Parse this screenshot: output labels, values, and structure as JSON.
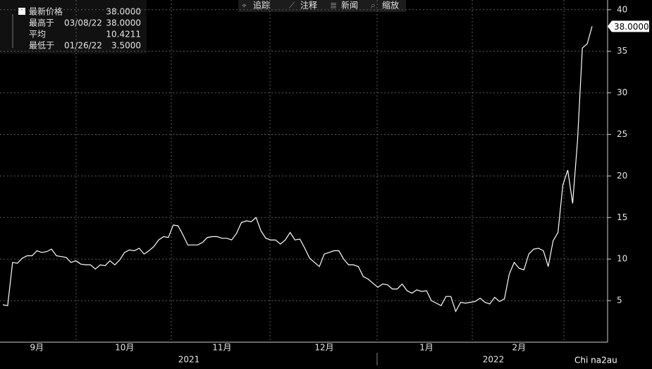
{
  "chart_data": {
    "type": "line",
    "toolbar": [
      "追踪",
      "注释",
      "新闻",
      "缩放"
    ],
    "stats": [
      {
        "name": "最新价格",
        "value": "38.0000"
      },
      {
        "name": "最高于",
        "date": "03/08/22",
        "value": "38.0000"
      },
      {
        "name": "平均",
        "value": "10.4211"
      },
      {
        "name": "最低于",
        "date": "01/26/22",
        "value": "3.5000"
      }
    ],
    "last_label": "38.0000",
    "years": [
      "2021",
      "2022"
    ],
    "watermark": "Chi na2au",
    "categories": [
      null,
      null,
      null,
      null,
      null,
      null,
      null,
      "9月",
      null,
      null,
      null,
      null,
      null,
      null,
      null,
      null,
      null,
      null,
      null,
      null,
      null,
      null,
      null,
      null,
      null,
      "10月",
      null,
      null,
      null,
      null,
      null,
      null,
      null,
      null,
      null,
      null,
      null,
      null,
      null,
      null,
      null,
      null,
      null,
      null,
      null,
      "11月",
      null,
      null,
      null,
      null,
      null,
      null,
      null,
      null,
      null,
      null,
      null,
      null,
      null,
      null,
      null,
      null,
      null,
      null,
      null,
      null,
      "12月",
      null,
      null,
      null,
      null,
      null,
      null,
      null,
      null,
      null,
      null,
      null,
      null,
      null,
      null,
      null,
      null,
      null,
      null,
      null,
      null,
      "1月",
      null,
      null,
      null,
      null,
      null,
      null,
      null,
      null,
      null,
      null,
      null,
      null,
      null,
      null,
      null,
      null,
      null,
      null,
      "2月",
      null,
      null,
      null,
      null,
      null,
      null,
      null,
      null,
      null,
      null,
      null,
      null,
      null,
      null,
      null
    ],
    "values": [
      4.5,
      4.4,
      9.6,
      9.5,
      10.1,
      10.4,
      10.4,
      11.0,
      10.8,
      10.9,
      11.2,
      10.4,
      10.3,
      10.2,
      9.6,
      9.8,
      9.4,
      9.3,
      9.3,
      8.8,
      9.3,
      9.2,
      9.8,
      9.3,
      9.9,
      10.8,
      11.1,
      11.0,
      11.3,
      10.6,
      11.0,
      11.5,
      12.3,
      12.7,
      12.6,
      14.1,
      14.0,
      12.9,
      11.7,
      11.7,
      11.7,
      12.0,
      12.6,
      12.7,
      12.7,
      12.5,
      12.5,
      12.3,
      13.1,
      14.4,
      14.6,
      14.5,
      15.0,
      13.4,
      12.5,
      12.3,
      12.3,
      11.8,
      12.3,
      13.2,
      12.3,
      12.4,
      11.3,
      10.1,
      9.6,
      9.1,
      10.6,
      10.8,
      11.0,
      11.0,
      10.0,
      9.3,
      9.3,
      9.1,
      7.9,
      7.6,
      7.1,
      6.6,
      7.0,
      6.9,
      6.4,
      6.4,
      7.0,
      6.2,
      5.9,
      6.3,
      6.1,
      6.2,
      5.0,
      4.7,
      4.4,
      5.5,
      5.5,
      3.7,
      4.8,
      4.7,
      4.8,
      4.9,
      5.3,
      4.8,
      4.6,
      5.4,
      4.9,
      5.2,
      8.2,
      9.6,
      8.9,
      8.7,
      10.6,
      11.2,
      11.3,
      11.0,
      9.1,
      12.2,
      13.2,
      18.9,
      20.7,
      16.7,
      24.2,
      35.4,
      35.9,
      38.0
    ],
    "color": "#ffffff",
    "ylim": [
      0,
      41
    ],
    "yticks": [
      5,
      10,
      15,
      20,
      25,
      30,
      35,
      40
    ],
    "grid": true
  }
}
